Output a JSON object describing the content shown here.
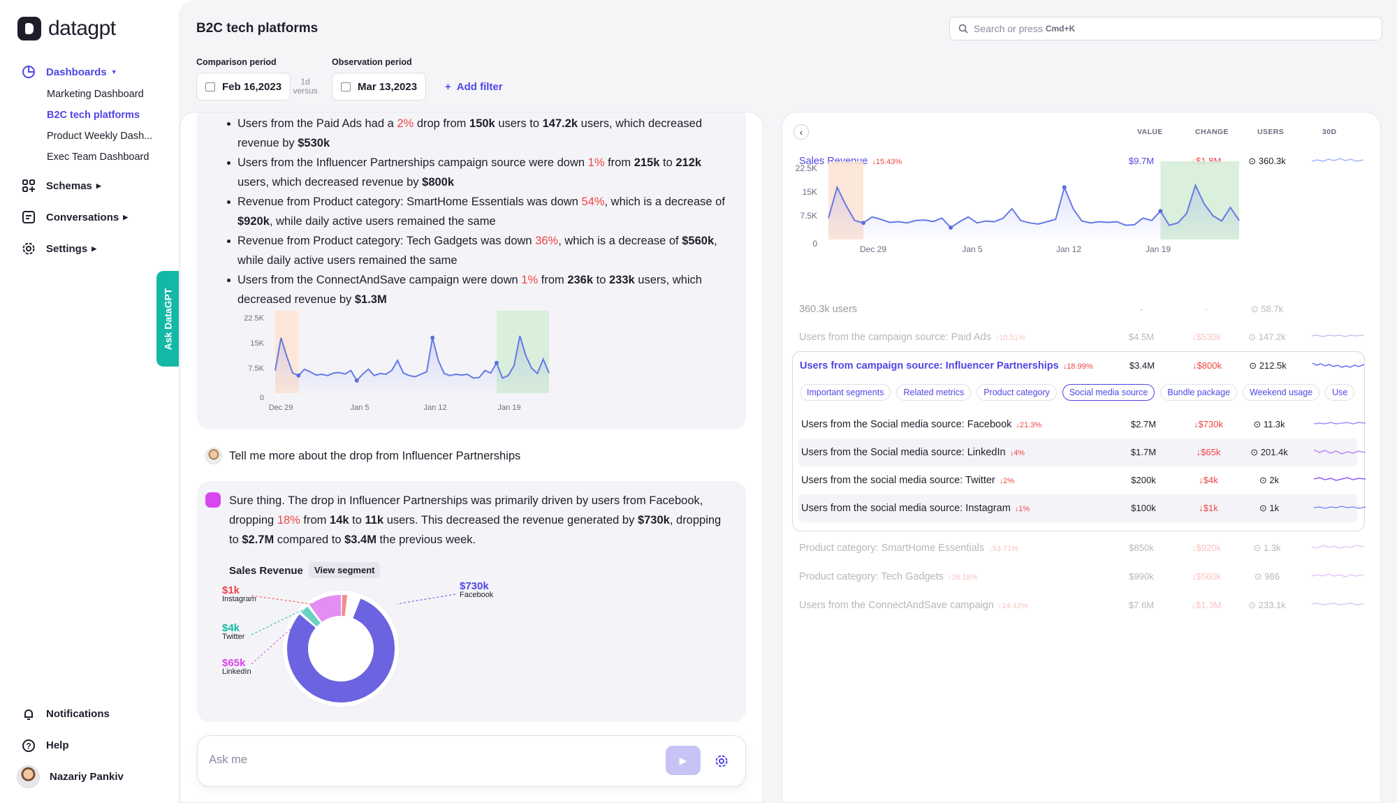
{
  "app": {
    "name": "datagpt"
  },
  "nav": {
    "dashboards": "Dashboards",
    "dashboard_items": [
      "Marketing Dashboard",
      "B2C tech platforms",
      "Product Weekly Dash...",
      "Exec Team Dashboard"
    ],
    "schemas": "Schemas",
    "conversations": "Conversations",
    "settings": "Settings",
    "notifications": "Notifications",
    "help": "Help",
    "user": "Nazariy Pankiv",
    "ask_tab": "Ask DataGPT"
  },
  "header": {
    "title": "B2C tech platforms",
    "search_placeholder": "Search or press",
    "search_shortcut": "Cmd+K"
  },
  "filters": {
    "comparison_label": "Comparison period",
    "comparison_value": "Feb 16,2023",
    "versus_top": "1d",
    "versus_bottom": "versus",
    "observation_label": "Observation period",
    "observation_value": "Mar 13,2023",
    "add_filter": "Add filter"
  },
  "chat": {
    "bullets": [
      {
        "a": "Users from the Paid Ads had a ",
        "b": "2%",
        "c": " drop from ",
        "d": "150k",
        "e": " users to ",
        "f": "147.2k",
        "g": " users, which decreased revenue by ",
        "h": "$530k"
      },
      {
        "a": "Users from the Influencer Partnerships campaign source were down ",
        "b": "1%",
        "c": " from ",
        "d": "215k",
        "e": " to ",
        "f": "212k",
        "g": " users, which decreased revenue by ",
        "h": "$800k"
      },
      {
        "a": "Revenue from Product category: SmartHome Essentials was down ",
        "b": "54%",
        "c": ", which is a decrease of ",
        "d": "$920k",
        "e": ", while daily active users remained the same"
      },
      {
        "a": "Revenue from Product category: Tech Gadgets was down ",
        "b": "36%",
        "c": ", which is a decrease of ",
        "d": "$560k",
        "e": ", while daily active users remained the same"
      },
      {
        "a": "Users from the ConnectAndSave campaign were down ",
        "b": "1%",
        "c": " from ",
        "d": "236k",
        "e": " to ",
        "f": "233k",
        "g": " users, which decreased revenue by ",
        "h": "$1.3M"
      }
    ],
    "question": "Tell me more about the drop from Influencer Partnerships",
    "answer": {
      "a": "Sure thing. The drop in Influencer Partnerships was primarily driven by users from Facebook, dropping ",
      "b": "18%",
      "c": " from ",
      "d": "14k",
      "e": " to ",
      "f": "11k",
      "g": " users. This decreased the revenue generated by ",
      "h": "$730k",
      "i": ", dropping to ",
      "j": "$2.7M",
      "k": " compared to ",
      "l": "$3.4M",
      "m": " the previous week."
    },
    "sales_revenue_label": "Sales Revenue",
    "view_segment": "View segment",
    "ask_placeholder": "Ask me"
  },
  "panel": {
    "col_value": "VALUE",
    "col_change": "CHANGE",
    "col_users": "USERS",
    "col_30d": "30D",
    "metric": {
      "name": "Sales Revenue",
      "change_pct": "15.43%",
      "value": "$9.7M",
      "change": "$1.8M",
      "users": "360.3k"
    },
    "total_row": {
      "name": "360.3k users",
      "value": "-",
      "change": "-",
      "users": "58.7k"
    },
    "rows": [
      {
        "name": "Users from the campaign source: Paid Ads",
        "pct": "10.51%",
        "value": "$4.5M",
        "change": "$530k",
        "users": "147.2k"
      }
    ],
    "highlight": {
      "name": "Users from campaign source: Influencer Partnerships",
      "pct": "18.99%",
      "value": "$3.4M",
      "change": "$800k",
      "users": "212.5k"
    },
    "tabs": [
      "Important segments",
      "Related metrics",
      "Product category",
      "Social media source",
      "Bundle package",
      "Weekend usage",
      "Use"
    ],
    "social_rows": [
      {
        "name": "Users from the Social media source: Facebook",
        "pct": "21.3%",
        "value": "$2.7M",
        "change": "$730k",
        "users": "11.3k"
      },
      {
        "name": "Users from the Social media source: LinkedIn",
        "pct": "4%",
        "value": "$1.7M",
        "change": "$65k",
        "users": "201.4k"
      },
      {
        "name": "Users from the social media source: Twitter",
        "pct": "2%",
        "value": "$200k",
        "change": "$4k",
        "users": "2k"
      },
      {
        "name": "Users from the social media source: Instagram",
        "pct": "1%",
        "value": "$100k",
        "change": "$1k",
        "users": "1k"
      }
    ],
    "after_rows": [
      {
        "name": "Product category: SmartHome Essentials",
        "pct": "53.71%",
        "value": "$850k",
        "change": "$920k",
        "users": "1.3k"
      },
      {
        "name": "Product category: Tech Gadgets",
        "pct": "36.18%",
        "value": "$990k",
        "change": "$560k",
        "users": "986"
      },
      {
        "name": "Users from the ConnectAndSave campaign",
        "pct": "14.42%",
        "value": "$7.6M",
        "change": "$1.3M",
        "users": "233.1k"
      }
    ]
  },
  "chart_data": [
    {
      "type": "area",
      "title": "",
      "y_ticks": [
        "22.5K",
        "15K",
        "7.5K",
        "0"
      ],
      "x_ticks": [
        "Dec 29",
        "Jan 5",
        "Jan 12",
        "Jan 19"
      ],
      "ylim": [
        0,
        30000
      ],
      "values": [
        9000,
        22000,
        14500,
        8000,
        7000,
        9500,
        8500,
        7200,
        7500,
        7000,
        8000,
        8200,
        7600,
        9000,
        5000,
        7500,
        9500,
        7000,
        7800,
        7500,
        9000,
        13000,
        8000,
        7000,
        6500,
        7500,
        8500,
        22000,
        13000,
        7800,
        7000,
        7500,
        7200,
        7500,
        6000,
        6200,
        9000,
        8000,
        12000,
        6000,
        7000,
        11000,
        22800,
        15000,
        10000,
        7800,
        13500,
        8000
      ],
      "shaded_ranges": [
        {
          "from": 0,
          "to": 4,
          "label": "comparison"
        },
        {
          "from": 38,
          "to": 47,
          "label": "observation"
        }
      ]
    },
    {
      "type": "donut",
      "title": "Sales Revenue",
      "slices": [
        {
          "name": "Facebook",
          "value": 730
        },
        {
          "name": "LinkedIn",
          "value": 65
        },
        {
          "name": "Twitter",
          "value": 4
        },
        {
          "name": "Instagram",
          "value": 1
        }
      ],
      "labels": [
        {
          "name": "Instagram",
          "value": "$1k",
          "color": "#ef4444"
        },
        {
          "name": "Twitter",
          "value": "$4k",
          "color": "#14b8a6"
        },
        {
          "name": "LinkedIn",
          "value": "$65k",
          "color": "#d946ef"
        },
        {
          "name": "Facebook",
          "value": "$730k",
          "color": "#4f46e5"
        }
      ]
    }
  ]
}
